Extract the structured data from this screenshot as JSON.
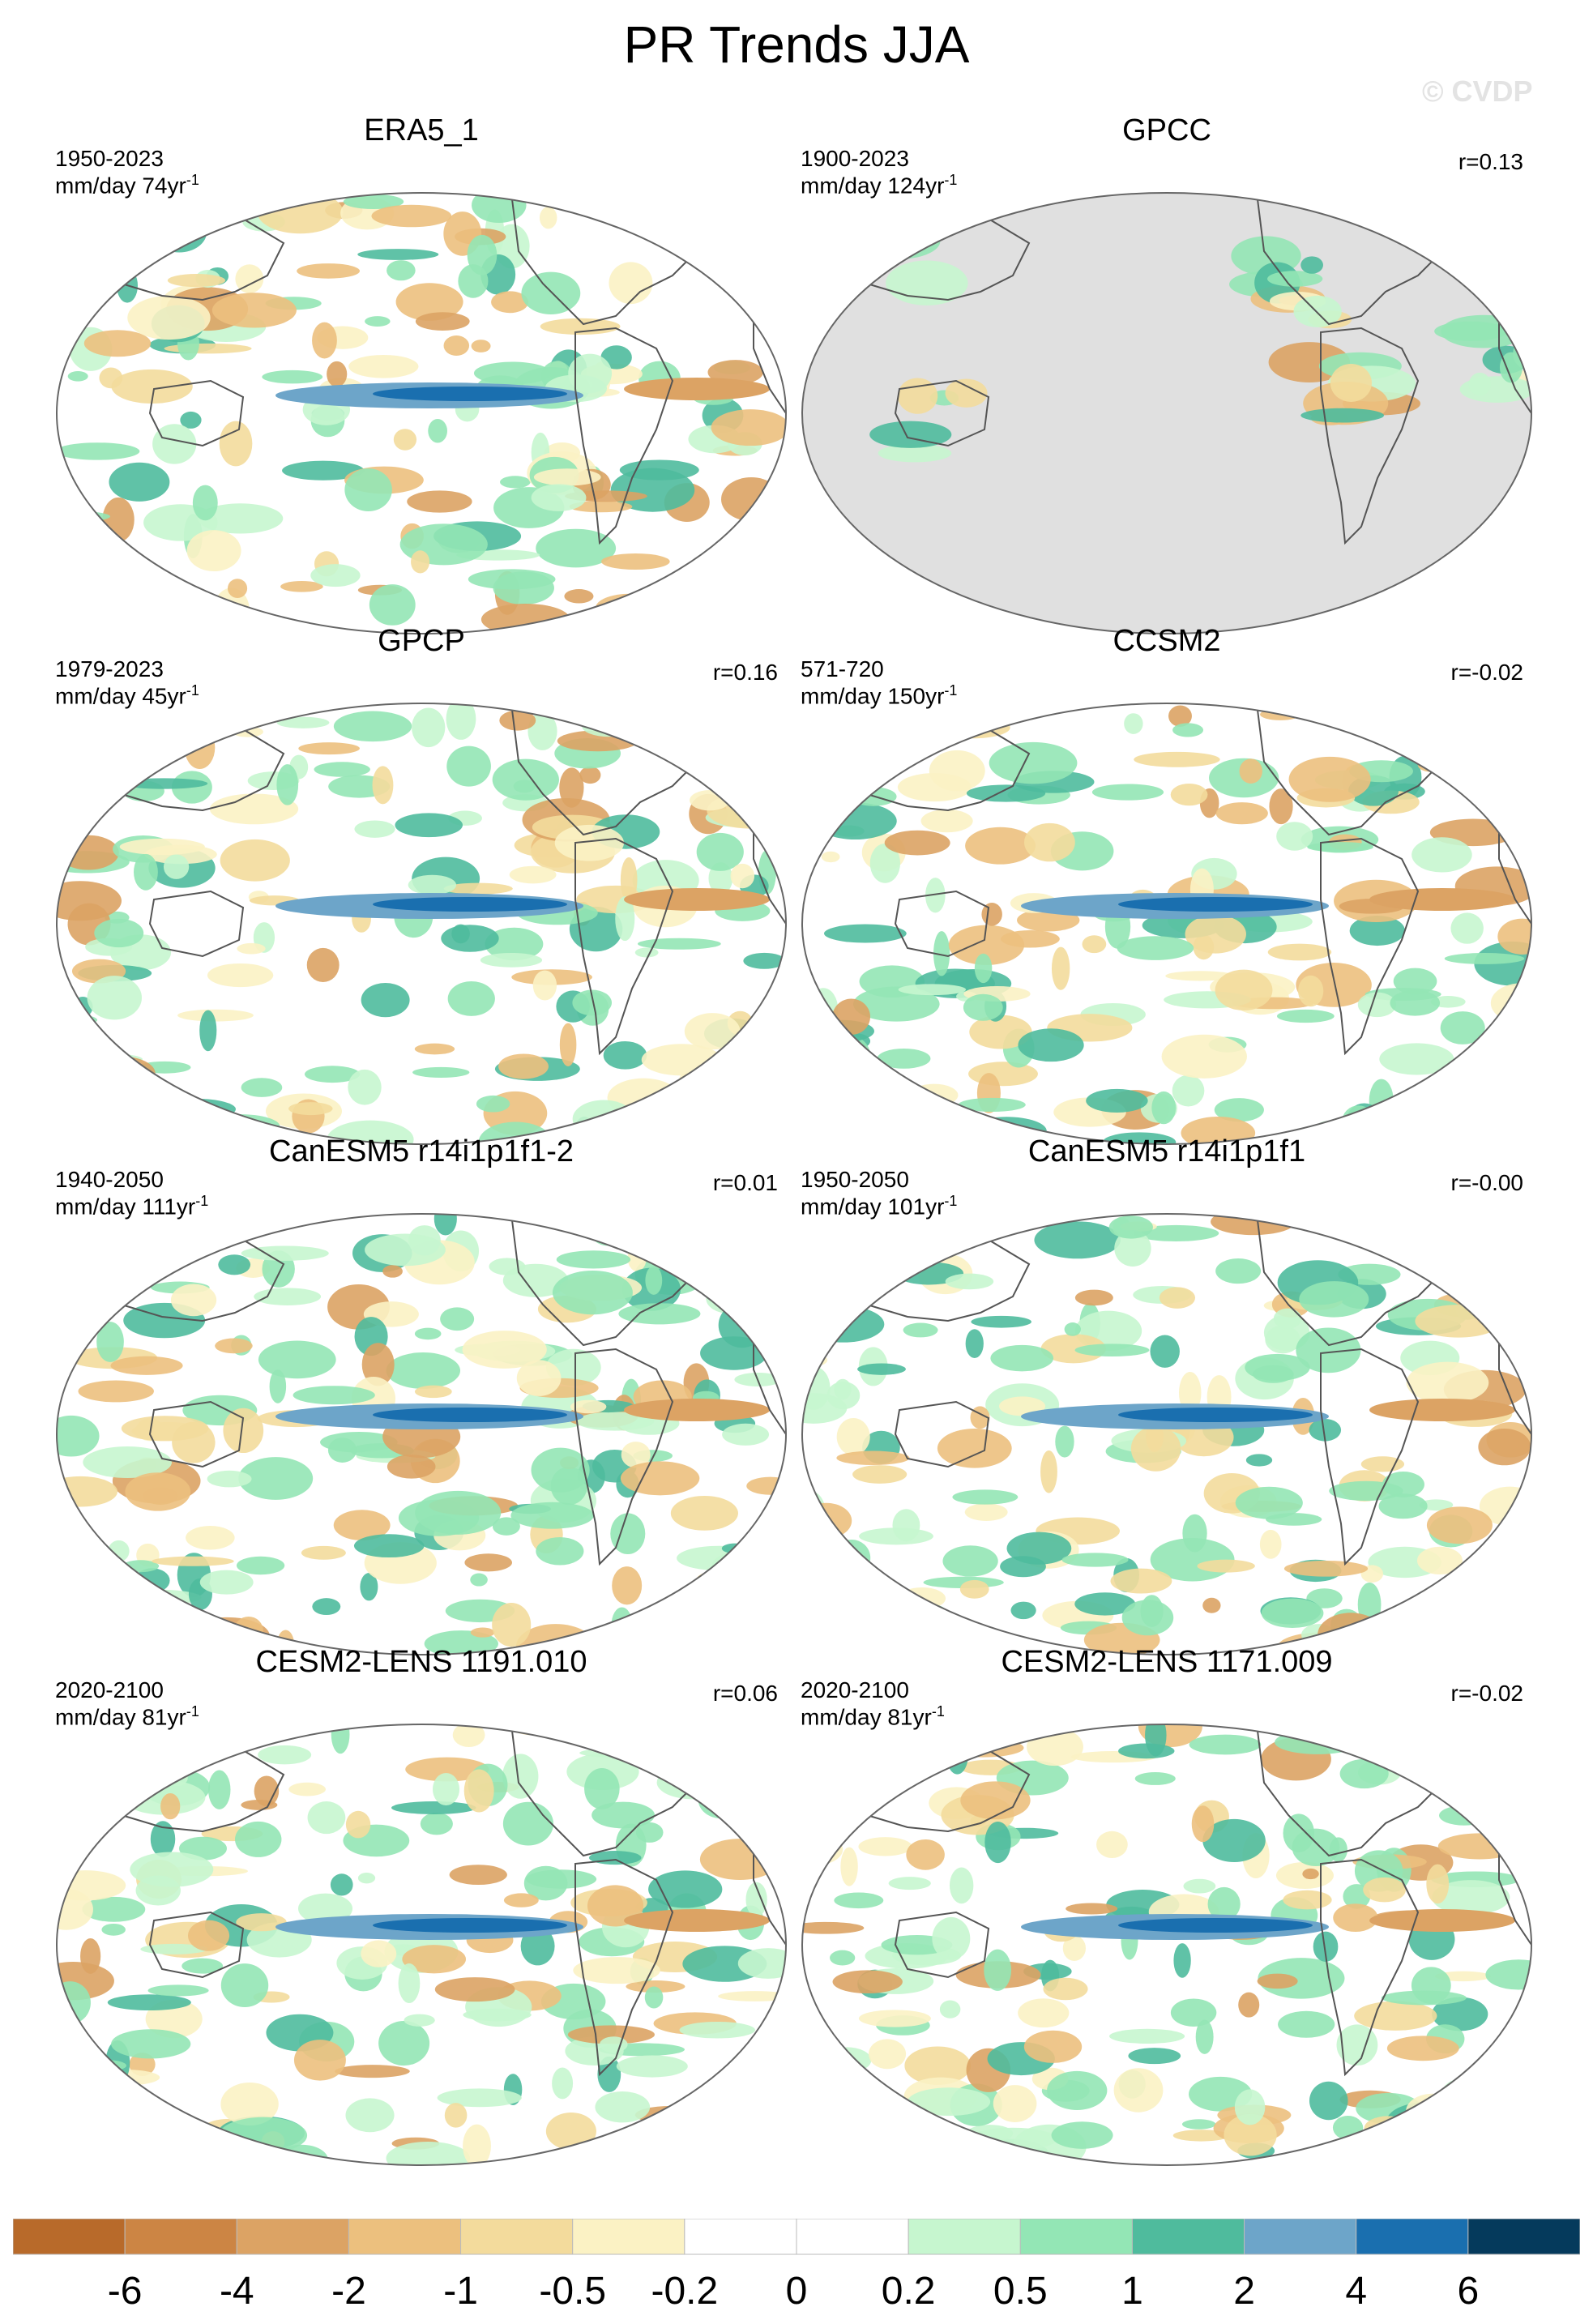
{
  "title": "PR Trends JJA",
  "watermark": "© CVDP",
  "panels": [
    {
      "title": "ERA5_1",
      "years": "1950-2023",
      "units": "mm/day 74yr",
      "corr": "",
      "ocean_masked": false
    },
    {
      "title": "GPCC",
      "years": "1900-2023",
      "units": "mm/day 124yr",
      "corr": "r=0.13",
      "ocean_masked": true
    },
    {
      "title": "GPCP",
      "years": "1979-2023",
      "units": "mm/day 45yr",
      "corr": "r=0.16",
      "ocean_masked": false
    },
    {
      "title": "CCSM2",
      "years": "571-720",
      "units": "mm/day 150yr",
      "corr": "r=-0.02",
      "ocean_masked": false
    },
    {
      "title": "CanESM5 r14i1p1f1-2",
      "years": "1940-2050",
      "units": "mm/day 111yr",
      "corr": "r=0.01",
      "ocean_masked": false
    },
    {
      "title": "CanESM5 r14i1p1f1",
      "years": "1950-2050",
      "units": "mm/day 101yr",
      "corr": "r=-0.00",
      "ocean_masked": false
    },
    {
      "title": "CESM2-LENS 1191.010",
      "years": "2020-2100",
      "units": "mm/day 81yr",
      "corr": "r=0.06",
      "ocean_masked": false
    },
    {
      "title": "CESM2-LENS 1171.009",
      "years": "2020-2100",
      "units": "mm/day 81yr",
      "corr": "r=-0.02",
      "ocean_masked": false
    }
  ],
  "units_superscript": "-1",
  "colorbar": {
    "labels": [
      "-6",
      "-4",
      "-2",
      "-1",
      "-0.5",
      "-0.2",
      "0",
      "0.2",
      "0.5",
      "1",
      "2",
      "4",
      "6"
    ],
    "colors": [
      "#b86a2a",
      "#cc8544",
      "#dca364",
      "#ecc07e",
      "#f3db9c",
      "#fbf2c4",
      "#ffffff",
      "#ffffff",
      "#c6f6cf",
      "#93e6b5",
      "#4fbb9d",
      "#6da5c9",
      "#1a6faf",
      "#053a5c"
    ]
  },
  "palette": {
    "land_mask": "#e0e0e0",
    "coast": "#555555"
  }
}
